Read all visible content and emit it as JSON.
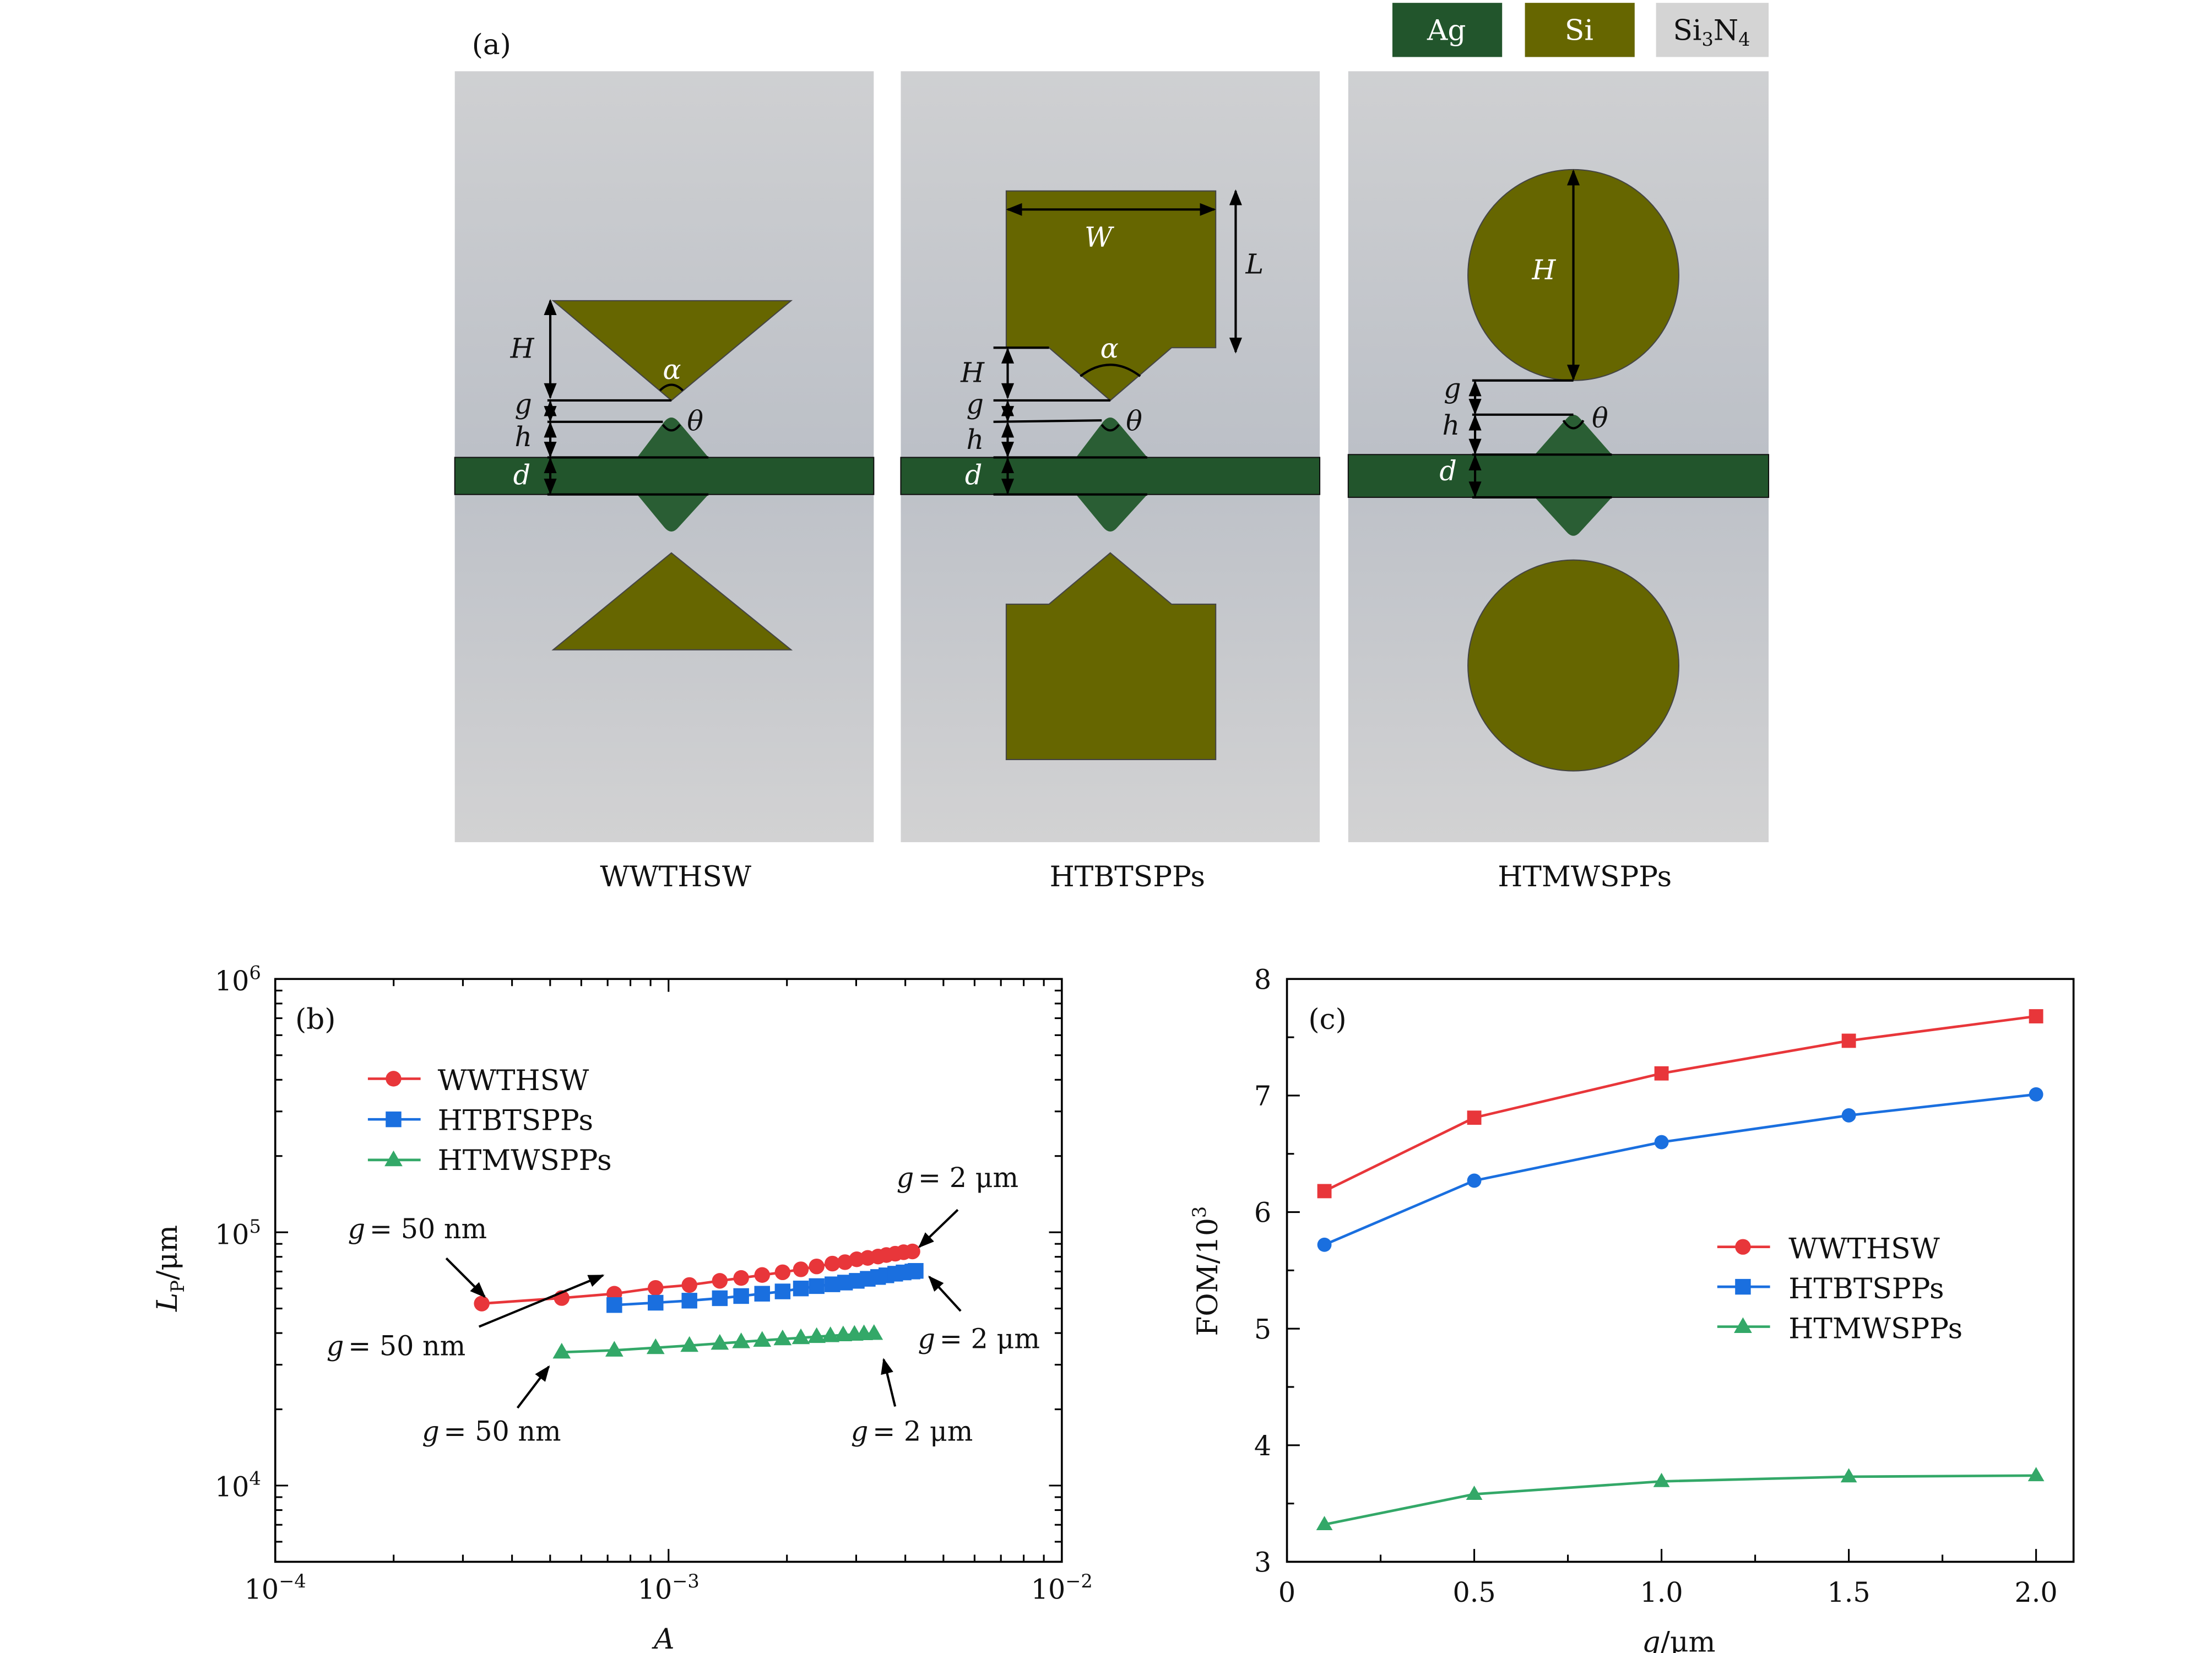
{
  "panel_a": {
    "label": "(a)",
    "materials": [
      {
        "name": "Ag",
        "color": "#22552c"
      },
      {
        "name": "Si",
        "color": "#666600"
      },
      {
        "name": "Si3N4",
        "color": "#d4d4d4",
        "base": "Si",
        "sub": "3",
        "mid": "N",
        "sub2": "4"
      }
    ],
    "structures": [
      {
        "caption": "WWTHSW",
        "labels": {
          "H": "H",
          "g": "g",
          "h": "h",
          "d": "d",
          "alpha": "α",
          "theta": "θ"
        }
      },
      {
        "caption": "HTBTSPPs",
        "labels": {
          "W": "W",
          "L": "L",
          "H": "H",
          "g": "g",
          "h": "h",
          "d": "d",
          "alpha": "α",
          "theta": "θ"
        }
      },
      {
        "caption": "HTMWSPPs",
        "labels": {
          "H": "H",
          "g": "g",
          "h": "h",
          "d": "d",
          "theta": "θ"
        }
      }
    ]
  },
  "chart_data": [
    {
      "panel": "(b)",
      "type": "line",
      "xlabel": "A",
      "ylabel_main": "L",
      "ylabel_sub": "P",
      "ylabel_unit": "/μm",
      "xscale": "log",
      "yscale": "log",
      "xlim": [
        0.0001,
        0.01
      ],
      "ylim": [
        5000,
        1000000
      ],
      "xticks": [
        {
          "base": "10",
          "exp": "−4",
          "value": 0.0001
        },
        {
          "base": "10",
          "exp": "−3",
          "value": 0.001
        },
        {
          "base": "10",
          "exp": "−2",
          "value": 0.01
        }
      ],
      "yticks": [
        {
          "base": "10",
          "exp": "4",
          "value": 10000
        },
        {
          "base": "10",
          "exp": "5",
          "value": 100000
        },
        {
          "base": "10",
          "exp": "6",
          "value": 1000000
        }
      ],
      "grid": false,
      "legend_position": "top-left",
      "series": [
        {
          "name": "WWTHSW",
          "color": "#e8363a",
          "marker": "circle",
          "legend_marker": "circle",
          "x": [
            0.000335,
            0.000535,
            0.000728,
            0.000927,
            0.00113,
            0.00135,
            0.00153,
            0.00173,
            0.00195,
            0.00217,
            0.00238,
            0.00261,
            0.00281,
            0.00301,
            0.00321,
            0.00341,
            0.00358,
            0.00377,
            0.00396,
            0.00417
          ],
          "y": [
            52300,
            55000,
            57200,
            60300,
            61900,
            64300,
            66000,
            67800,
            69500,
            71400,
            73300,
            75200,
            76200,
            78200,
            79200,
            80200,
            81300,
            82300,
            83400,
            84000
          ]
        },
        {
          "name": "HTBTSPPs",
          "color": "#1a6fdf",
          "marker": "square",
          "legend_marker": "square",
          "x": [
            0.000728,
            0.000927,
            0.00113,
            0.00135,
            0.00153,
            0.00173,
            0.00195,
            0.00217,
            0.00238,
            0.00261,
            0.00281,
            0.00301,
            0.00321,
            0.00341,
            0.00358,
            0.00377,
            0.00396,
            0.00417,
            0.00425
          ],
          "y": [
            51600,
            52700,
            53700,
            54900,
            56000,
            57200,
            58400,
            60000,
            61300,
            62300,
            63300,
            64300,
            65500,
            66600,
            67600,
            68600,
            69400,
            70000,
            70400
          ]
        },
        {
          "name": "HTMWSPPs",
          "color": "#33a868",
          "marker": "triangle",
          "legend_marker": "triangle",
          "x": [
            0.000535,
            0.000728,
            0.000927,
            0.00113,
            0.00135,
            0.00153,
            0.00173,
            0.00195,
            0.00217,
            0.00238,
            0.00258,
            0.00278,
            0.00297,
            0.00314,
            0.00333
          ],
          "y": [
            33600,
            34200,
            35000,
            35700,
            36400,
            36900,
            37400,
            37900,
            38300,
            38700,
            39000,
            39300,
            39500,
            39700,
            39800
          ]
        }
      ],
      "annotations": [
        {
          "text_pre": "g",
          "text_post": "= 50 nm"
        },
        {
          "text_pre": "g",
          "text_post": "= 50 nm"
        },
        {
          "text_pre": "g",
          "text_post": "= 50 nm"
        },
        {
          "text_pre": "g",
          "text_post": "= 2 μm"
        },
        {
          "text_pre": "g",
          "text_post": "= 2 μm"
        },
        {
          "text_pre": "g",
          "text_post": "= 2 μm"
        }
      ]
    },
    {
      "panel": "(c)",
      "type": "line",
      "xlabel_main": "g",
      "xlabel_unit": "/μm",
      "ylabel_main": "FOM/10",
      "ylabel_exp": "3",
      "xlim": [
        0,
        2.1
      ],
      "ylim": [
        3,
        8
      ],
      "xticks": [
        "0",
        "0.5",
        "1.0",
        "1.5",
        "2.0"
      ],
      "yticks": [
        "3",
        "4",
        "5",
        "6",
        "7",
        "8"
      ],
      "grid": false,
      "legend_position": "center-right",
      "series": [
        {
          "name": "WWTHSW",
          "color": "#e8363a",
          "marker": "square",
          "legend_marker": "circle",
          "x": [
            0.1,
            0.5,
            1.0,
            1.5,
            2.0
          ],
          "y": [
            6.18,
            6.81,
            7.19,
            7.47,
            7.68
          ]
        },
        {
          "name": "HTBTSPPs",
          "color": "#1a6fdf",
          "marker": "circle",
          "legend_marker": "square",
          "x": [
            0.1,
            0.5,
            1.0,
            1.5,
            2.0
          ],
          "y": [
            5.72,
            6.27,
            6.6,
            6.83,
            7.01
          ]
        },
        {
          "name": "HTMWSPPs",
          "color": "#33a868",
          "marker": "triangle",
          "legend_marker": "triangle",
          "x": [
            0.1,
            0.5,
            1.0,
            1.5,
            2.0
          ],
          "y": [
            3.32,
            3.58,
            3.69,
            3.73,
            3.74
          ]
        }
      ]
    }
  ]
}
